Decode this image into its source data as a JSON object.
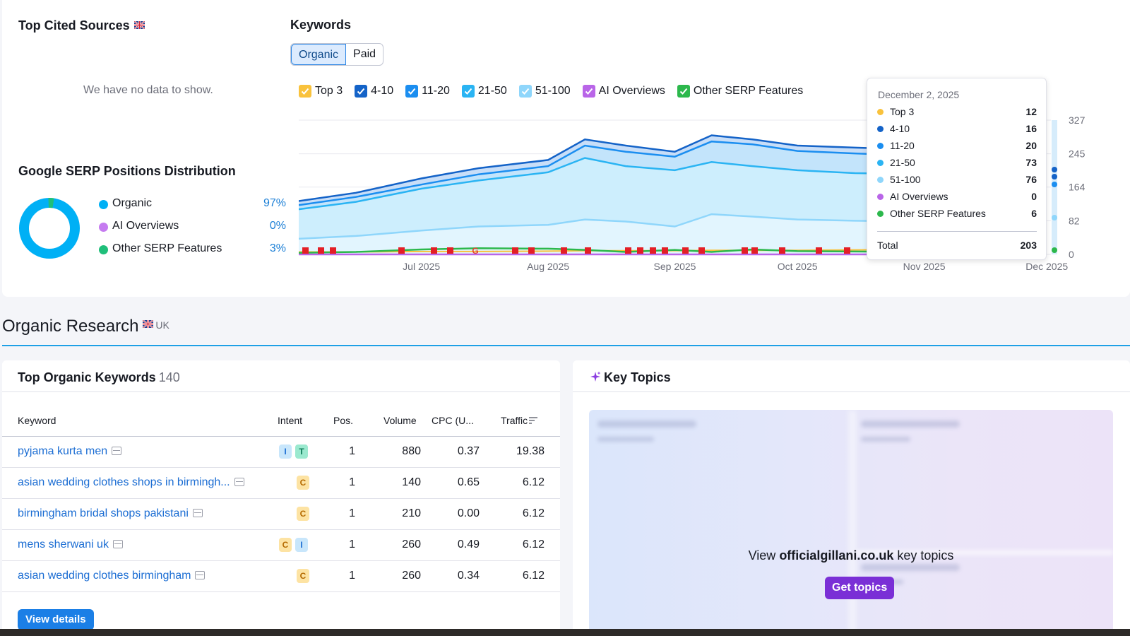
{
  "top_cited": {
    "title": "Top Cited Sources",
    "empty_text": "We have no data to show."
  },
  "serp_distribution": {
    "title": "Google SERP Positions Distribution",
    "items": [
      {
        "label": "Organic",
        "pct": "97%",
        "color": "#00b0f5",
        "value": 97
      },
      {
        "label": "AI Overviews",
        "pct": "0%",
        "color": "#c57bf0",
        "value": 0
      },
      {
        "label": "Other SERP Features",
        "pct": "3%",
        "color": "#1fbf7a",
        "value": 3
      }
    ]
  },
  "keywords": {
    "title": "Keywords",
    "tabs": [
      {
        "label": "Organic",
        "active": true
      },
      {
        "label": "Paid",
        "active": false
      }
    ],
    "filters": [
      {
        "label": "Top 3",
        "color": "#f9c23c"
      },
      {
        "label": "4-10",
        "color": "#1463c8"
      },
      {
        "label": "11-20",
        "color": "#1b8ef0"
      },
      {
        "label": "21-50",
        "color": "#2ab4f3"
      },
      {
        "label": "51-100",
        "color": "#8fd6fb"
      },
      {
        "label": "AI Overviews",
        "color": "#b965e8"
      },
      {
        "label": "Other SERP Features",
        "color": "#2cb84c"
      }
    ]
  },
  "chart_data": {
    "type": "area",
    "x_tick_labels": [
      "Jul 2025",
      "Aug 2025",
      "Sep 2025",
      "Oct 2025",
      "Nov 2025",
      "Dec 2025"
    ],
    "y_tick_labels": [
      "327",
      "245",
      "164",
      "82",
      "0"
    ],
    "ylim": [
      0,
      327
    ],
    "grid": true,
    "x": [
      "2025-06-01",
      "2025-06-15",
      "2025-07-01",
      "2025-07-15",
      "2025-08-01",
      "2025-08-10",
      "2025-08-20",
      "2025-09-01",
      "2025-09-10",
      "2025-09-20",
      "2025-10-01",
      "2025-10-15",
      "2025-11-01"
    ],
    "series": [
      {
        "name": "Top 3",
        "color": "#f9c23c",
        "values": [
          6,
          6,
          7,
          7,
          8,
          9,
          9,
          9,
          10,
          10,
          10,
          11,
          12
        ]
      },
      {
        "name": "4-10",
        "color": "#1463c8",
        "values": [
          130,
          150,
          185,
          210,
          230,
          280,
          265,
          250,
          290,
          280,
          265,
          260,
          255
        ]
      },
      {
        "name": "11-20",
        "color": "#1b8ef0",
        "values": [
          120,
          140,
          170,
          195,
          215,
          265,
          250,
          238,
          275,
          268,
          252,
          246,
          240
        ]
      },
      {
        "name": "21-50",
        "color": "#2ab4f3",
        "values": [
          110,
          128,
          160,
          180,
          200,
          235,
          215,
          205,
          225,
          215,
          205,
          198,
          195
        ]
      },
      {
        "name": "51-100",
        "color": "#8fd6fb",
        "values": [
          38,
          45,
          58,
          68,
          72,
          85,
          80,
          68,
          98,
          92,
          85,
          82,
          80
        ]
      },
      {
        "name": "AI Overviews",
        "color": "#b965e8",
        "values": [
          0,
          0,
          0,
          0,
          0,
          0,
          0,
          0,
          0,
          0,
          0,
          0,
          0
        ]
      },
      {
        "name": "Other SERP Features",
        "color": "#2cb84c",
        "values": [
          4,
          6,
          12,
          15,
          14,
          11,
          6,
          11,
          6,
          12,
          8,
          7,
          6
        ]
      }
    ]
  },
  "tooltip": {
    "date": "December 2, 2025",
    "rows": [
      {
        "label": "Top 3",
        "value": "12",
        "color": "#f9c23c"
      },
      {
        "label": "4-10",
        "value": "16",
        "color": "#1463c8"
      },
      {
        "label": "11-20",
        "value": "20",
        "color": "#1b8ef0"
      },
      {
        "label": "21-50",
        "value": "73",
        "color": "#2ab4f3"
      },
      {
        "label": "51-100",
        "value": "76",
        "color": "#8fd6fb"
      },
      {
        "label": "AI Overviews",
        "value": "0",
        "color": "#b965e8"
      },
      {
        "label": "Other SERP Features",
        "value": "6",
        "color": "#2cb84c"
      }
    ],
    "total_label": "Total",
    "total_value": "203"
  },
  "organic_research": {
    "title": "Organic Research",
    "country": "UK"
  },
  "top_keywords": {
    "title": "Top Organic Keywords",
    "count": "140",
    "columns": [
      "Keyword",
      "Intent",
      "Pos.",
      "Volume",
      "CPC (U...",
      "Traffic"
    ],
    "rows": [
      {
        "keyword": "pyjama kurta men",
        "intents": [
          "I",
          "T"
        ],
        "pos": "1",
        "volume": "880",
        "cpc": "0.37",
        "traffic": "19.38"
      },
      {
        "keyword": "asian wedding clothes shops in birmingh...",
        "intents": [
          "C"
        ],
        "pos": "1",
        "volume": "140",
        "cpc": "0.65",
        "traffic": "6.12"
      },
      {
        "keyword": "birmingham bridal shops pakistani",
        "intents": [
          "C"
        ],
        "pos": "1",
        "volume": "210",
        "cpc": "0.00",
        "traffic": "6.12"
      },
      {
        "keyword": "mens sherwani uk",
        "intents": [
          "C",
          "I"
        ],
        "pos": "1",
        "volume": "260",
        "cpc": "0.49",
        "traffic": "6.12"
      },
      {
        "keyword": "asian wedding clothes birmingham",
        "intents": [
          "C"
        ],
        "pos": "1",
        "volume": "260",
        "cpc": "0.34",
        "traffic": "6.12"
      }
    ],
    "view_details": "View details"
  },
  "key_topics": {
    "title": "Key Topics",
    "view_prefix": "View ",
    "domain": "officialgillani.co.uk",
    "view_suffix": " key topics",
    "button": "Get topics"
  }
}
